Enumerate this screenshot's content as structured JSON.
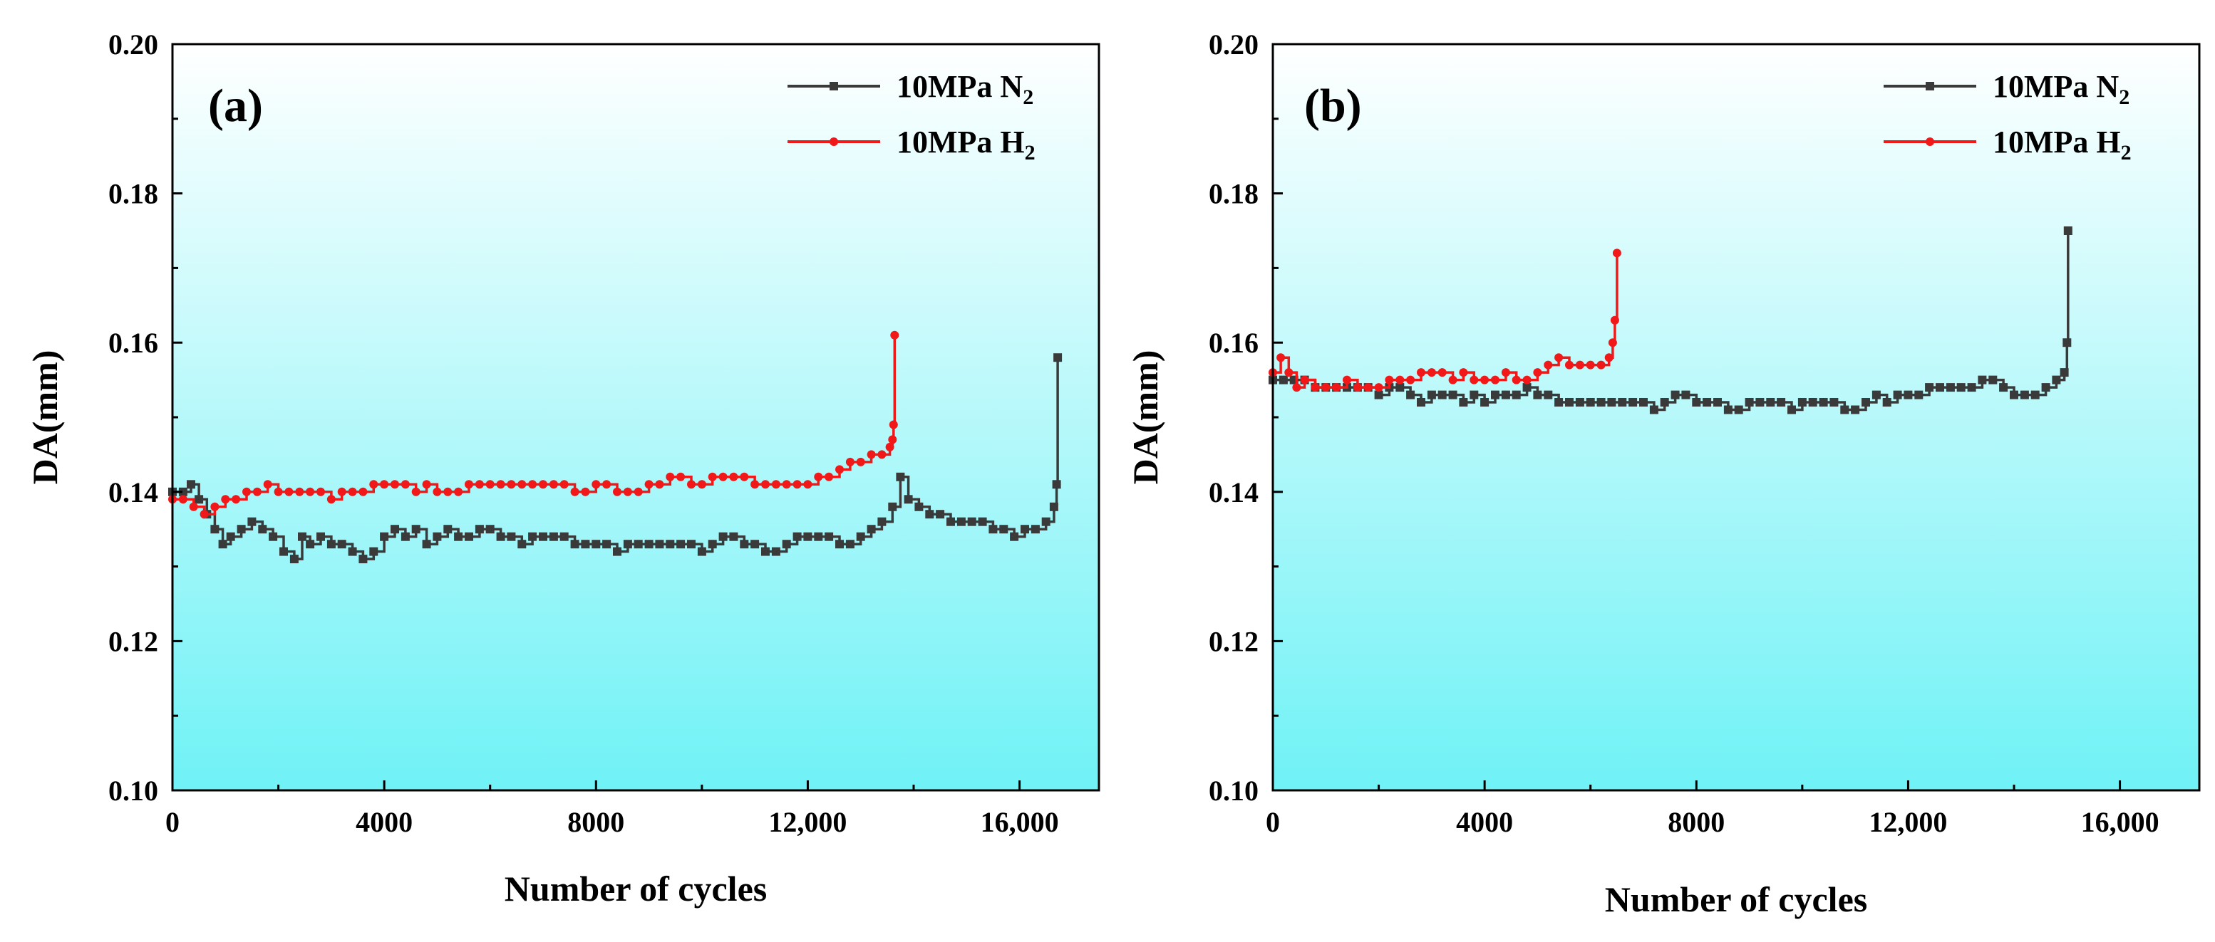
{
  "colors": {
    "bg_top": "#ffffff",
    "bg_bottom": "#6ff2f6",
    "series_n2": "#3a3a3a",
    "series_h2": "#f01818",
    "axis": "#000000"
  },
  "chart_data": [
    {
      "type": "line",
      "panel_label": "(a)",
      "xlabel": "Number of cycles",
      "ylabel": "DA(mm)",
      "xlim": [
        0,
        17500
      ],
      "ylim": [
        0.1,
        0.2
      ],
      "x_ticks": [
        0,
        4000,
        8000,
        12000,
        16000
      ],
      "x_tick_labels": [
        "0",
        "4000",
        "8000",
        "12,000",
        "16,000"
      ],
      "y_ticks": [
        0.1,
        0.12,
        0.14,
        0.16,
        0.18,
        0.2
      ],
      "y_tick_labels": [
        "0.10",
        "0.12",
        "0.14",
        "0.16",
        "0.18",
        "0.20"
      ],
      "grid": false,
      "legend_position": "top-right",
      "series": [
        {
          "name_main": "10MPa N",
          "name_sub": "2",
          "color": "#3a3a3a",
          "marker": "square",
          "x": [
            0,
            200,
            350,
            500,
            650,
            800,
            950,
            1100,
            1300,
            1500,
            1700,
            1900,
            2100,
            2300,
            2450,
            2600,
            2800,
            3000,
            3200,
            3400,
            3600,
            3800,
            4000,
            4200,
            4400,
            4600,
            4800,
            5000,
            5200,
            5400,
            5600,
            5800,
            6000,
            6200,
            6400,
            6600,
            6800,
            7000,
            7200,
            7400,
            7600,
            7800,
            8000,
            8200,
            8400,
            8600,
            8800,
            9000,
            9200,
            9400,
            9600,
            9800,
            10000,
            10200,
            10400,
            10600,
            10800,
            11000,
            11200,
            11400,
            11600,
            11800,
            12000,
            12200,
            12400,
            12600,
            12800,
            13000,
            13200,
            13400,
            13600,
            13750,
            13900,
            14100,
            14300,
            14500,
            14700,
            14900,
            15100,
            15300,
            15500,
            15700,
            15900,
            16100,
            16300,
            16500,
            16650,
            16700,
            16720
          ],
          "values": [
            0.14,
            0.14,
            0.141,
            0.139,
            0.137,
            0.135,
            0.133,
            0.134,
            0.135,
            0.136,
            0.135,
            0.134,
            0.132,
            0.131,
            0.134,
            0.133,
            0.134,
            0.133,
            0.133,
            0.132,
            0.131,
            0.132,
            0.134,
            0.135,
            0.134,
            0.135,
            0.133,
            0.134,
            0.135,
            0.134,
            0.134,
            0.135,
            0.135,
            0.134,
            0.134,
            0.133,
            0.134,
            0.134,
            0.134,
            0.134,
            0.133,
            0.133,
            0.133,
            0.133,
            0.132,
            0.133,
            0.133,
            0.133,
            0.133,
            0.133,
            0.133,
            0.133,
            0.132,
            0.133,
            0.134,
            0.134,
            0.133,
            0.133,
            0.132,
            0.132,
            0.133,
            0.134,
            0.134,
            0.134,
            0.134,
            0.133,
            0.133,
            0.134,
            0.135,
            0.136,
            0.138,
            0.142,
            0.139,
            0.138,
            0.137,
            0.137,
            0.136,
            0.136,
            0.136,
            0.136,
            0.135,
            0.135,
            0.134,
            0.135,
            0.135,
            0.136,
            0.138,
            0.141,
            0.158
          ]
        },
        {
          "name_main": "10MPa H",
          "name_sub": "2",
          "color": "#f01818",
          "marker": "circle",
          "x": [
            0,
            200,
            400,
            600,
            800,
            1000,
            1200,
            1400,
            1600,
            1800,
            2000,
            2200,
            2400,
            2600,
            2800,
            3000,
            3200,
            3400,
            3600,
            3800,
            4000,
            4200,
            4400,
            4600,
            4800,
            5000,
            5200,
            5400,
            5600,
            5800,
            6000,
            6200,
            6400,
            6600,
            6800,
            7000,
            7200,
            7400,
            7600,
            7800,
            8000,
            8200,
            8400,
            8600,
            8800,
            9000,
            9200,
            9400,
            9600,
            9800,
            10000,
            10200,
            10400,
            10600,
            10800,
            11000,
            11200,
            11400,
            11600,
            11800,
            12000,
            12200,
            12400,
            12600,
            12800,
            13000,
            13200,
            13400,
            13550,
            13600,
            13620,
            13640
          ],
          "values": [
            0.139,
            0.139,
            0.138,
            0.137,
            0.138,
            0.139,
            0.139,
            0.14,
            0.14,
            0.141,
            0.14,
            0.14,
            0.14,
            0.14,
            0.14,
            0.139,
            0.14,
            0.14,
            0.14,
            0.141,
            0.141,
            0.141,
            0.141,
            0.14,
            0.141,
            0.14,
            0.14,
            0.14,
            0.141,
            0.141,
            0.141,
            0.141,
            0.141,
            0.141,
            0.141,
            0.141,
            0.141,
            0.141,
            0.14,
            0.14,
            0.141,
            0.141,
            0.14,
            0.14,
            0.14,
            0.141,
            0.141,
            0.142,
            0.142,
            0.141,
            0.141,
            0.142,
            0.142,
            0.142,
            0.142,
            0.141,
            0.141,
            0.141,
            0.141,
            0.141,
            0.141,
            0.142,
            0.142,
            0.143,
            0.144,
            0.144,
            0.145,
            0.145,
            0.146,
            0.147,
            0.149,
            0.161
          ]
        }
      ]
    },
    {
      "type": "line",
      "panel_label": "(b)",
      "xlabel": "Number of cycles",
      "ylabel": "DA(mm)",
      "xlim": [
        0,
        17500
      ],
      "ylim": [
        0.1,
        0.2
      ],
      "x_ticks": [
        0,
        4000,
        8000,
        12000,
        16000
      ],
      "x_tick_labels": [
        "0",
        "4000",
        "8000",
        "12,000",
        "16,000"
      ],
      "y_ticks": [
        0.1,
        0.12,
        0.14,
        0.16,
        0.18,
        0.2
      ],
      "y_tick_labels": [
        "0.10",
        "0.12",
        "0.14",
        "0.16",
        "0.18",
        "0.20"
      ],
      "grid": false,
      "legend_position": "top-right",
      "series": [
        {
          "name_main": "10MPa N",
          "name_sub": "2",
          "color": "#3a3a3a",
          "marker": "square",
          "x": [
            0,
            200,
            400,
            600,
            800,
            1000,
            1200,
            1400,
            1600,
            1800,
            2000,
            2200,
            2400,
            2600,
            2800,
            3000,
            3200,
            3400,
            3600,
            3800,
            4000,
            4200,
            4400,
            4600,
            4800,
            5000,
            5200,
            5400,
            5600,
            5800,
            6000,
            6200,
            6400,
            6600,
            6800,
            7000,
            7200,
            7400,
            7600,
            7800,
            8000,
            8200,
            8400,
            8600,
            8800,
            9000,
            9200,
            9400,
            9600,
            9800,
            10000,
            10200,
            10400,
            10600,
            10800,
            11000,
            11200,
            11400,
            11600,
            11800,
            12000,
            12200,
            12400,
            12600,
            12800,
            13000,
            13200,
            13400,
            13600,
            13800,
            14000,
            14200,
            14400,
            14600,
            14800,
            14950,
            15000,
            15020
          ],
          "values": [
            0.155,
            0.155,
            0.155,
            0.155,
            0.154,
            0.154,
            0.154,
            0.154,
            0.154,
            0.154,
            0.153,
            0.154,
            0.154,
            0.153,
            0.152,
            0.153,
            0.153,
            0.153,
            0.152,
            0.153,
            0.152,
            0.153,
            0.153,
            0.153,
            0.154,
            0.153,
            0.153,
            0.152,
            0.152,
            0.152,
            0.152,
            0.152,
            0.152,
            0.152,
            0.152,
            0.152,
            0.151,
            0.152,
            0.153,
            0.153,
            0.152,
            0.152,
            0.152,
            0.151,
            0.151,
            0.152,
            0.152,
            0.152,
            0.152,
            0.151,
            0.152,
            0.152,
            0.152,
            0.152,
            0.151,
            0.151,
            0.152,
            0.153,
            0.152,
            0.153,
            0.153,
            0.153,
            0.154,
            0.154,
            0.154,
            0.154,
            0.154,
            0.155,
            0.155,
            0.154,
            0.153,
            0.153,
            0.153,
            0.154,
            0.155,
            0.156,
            0.16,
            0.175
          ]
        },
        {
          "name_main": "10MPa H",
          "name_sub": "2",
          "color": "#f01818",
          "marker": "circle",
          "x": [
            0,
            150,
            300,
            450,
            600,
            800,
            1000,
            1200,
            1400,
            1600,
            1800,
            2000,
            2200,
            2400,
            2600,
            2800,
            3000,
            3200,
            3400,
            3600,
            3800,
            4000,
            4200,
            4400,
            4600,
            4800,
            5000,
            5200,
            5400,
            5600,
            5800,
            6000,
            6200,
            6350,
            6420,
            6460,
            6500
          ],
          "values": [
            0.156,
            0.158,
            0.156,
            0.154,
            0.155,
            0.154,
            0.154,
            0.154,
            0.155,
            0.154,
            0.154,
            0.154,
            0.155,
            0.155,
            0.155,
            0.156,
            0.156,
            0.156,
            0.155,
            0.156,
            0.155,
            0.155,
            0.155,
            0.156,
            0.155,
            0.155,
            0.156,
            0.157,
            0.158,
            0.157,
            0.157,
            0.157,
            0.157,
            0.158,
            0.16,
            0.163,
            0.172
          ]
        }
      ]
    }
  ]
}
